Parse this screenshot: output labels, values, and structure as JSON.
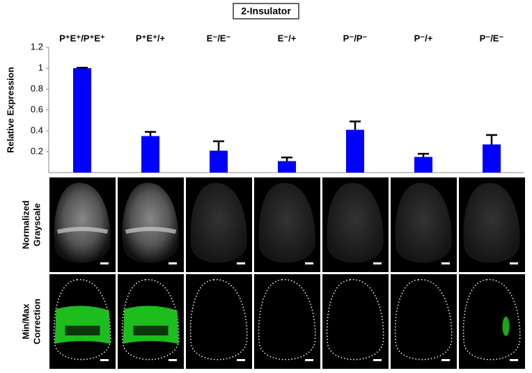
{
  "chart_data": {
    "type": "bar",
    "title": "2-Insulator",
    "y_label": "Relative Expression",
    "categories": [
      "P⁺E⁺/P⁺E⁺",
      "P⁺E⁺/+",
      "E⁻/E⁻",
      "E⁻/+",
      "P⁻/P⁻",
      "P⁻/+",
      "P⁻/E⁻"
    ],
    "values": [
      1.0,
      0.35,
      0.21,
      0.11,
      0.41,
      0.15,
      0.27
    ],
    "errors": [
      0.005,
      0.04,
      0.09,
      0.035,
      0.08,
      0.03,
      0.09
    ],
    "color": "#0000ff",
    "ylim": [
      0,
      1.2
    ],
    "yticks": [
      0.2,
      0.4,
      0.6,
      0.8,
      1,
      1.2
    ],
    "grid": false
  },
  "panels": {
    "rows": [
      [
        "Normalized",
        "Grayscale"
      ],
      [
        "Min/Max",
        "Correction"
      ]
    ]
  }
}
